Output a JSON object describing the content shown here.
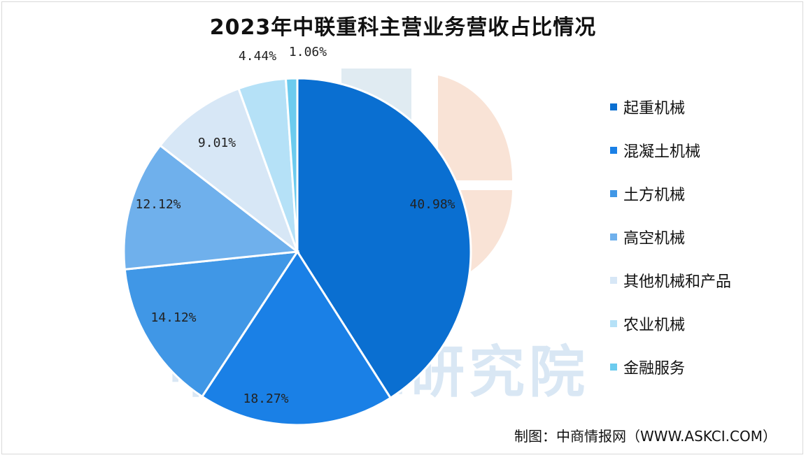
{
  "title": "2023年中联重科主营业务营收占比情况",
  "source": "制图：中商情报网（WWW.ASKCI.COM）",
  "watermark": "中商产业研究院",
  "chart_data": {
    "type": "pie",
    "title": "2023年中联重科主营业务营收占比情况",
    "legend_position": "right",
    "slices": [
      {
        "name": "起重机械",
        "value": 40.98,
        "label": "40.98%",
        "color": "#0a6fd1"
      },
      {
        "name": "混凝土机械",
        "value": 18.27,
        "label": "18.27%",
        "color": "#1a80e6"
      },
      {
        "name": "土方机械",
        "value": 14.12,
        "label": "14.12%",
        "color": "#4097e6"
      },
      {
        "name": "高空机械",
        "value": 12.12,
        "label": "12.12%",
        "color": "#6fb0ec"
      },
      {
        "name": "其他机械和产品",
        "value": 9.01,
        "label": "9.01%",
        "color": "#d7e7f6"
      },
      {
        "name": "农业机械",
        "value": 4.44,
        "label": "4.44%",
        "color": "#b5e1f7"
      },
      {
        "name": "金融服务",
        "value": 1.06,
        "label": "1.06%",
        "color": "#6ccbee"
      }
    ]
  }
}
